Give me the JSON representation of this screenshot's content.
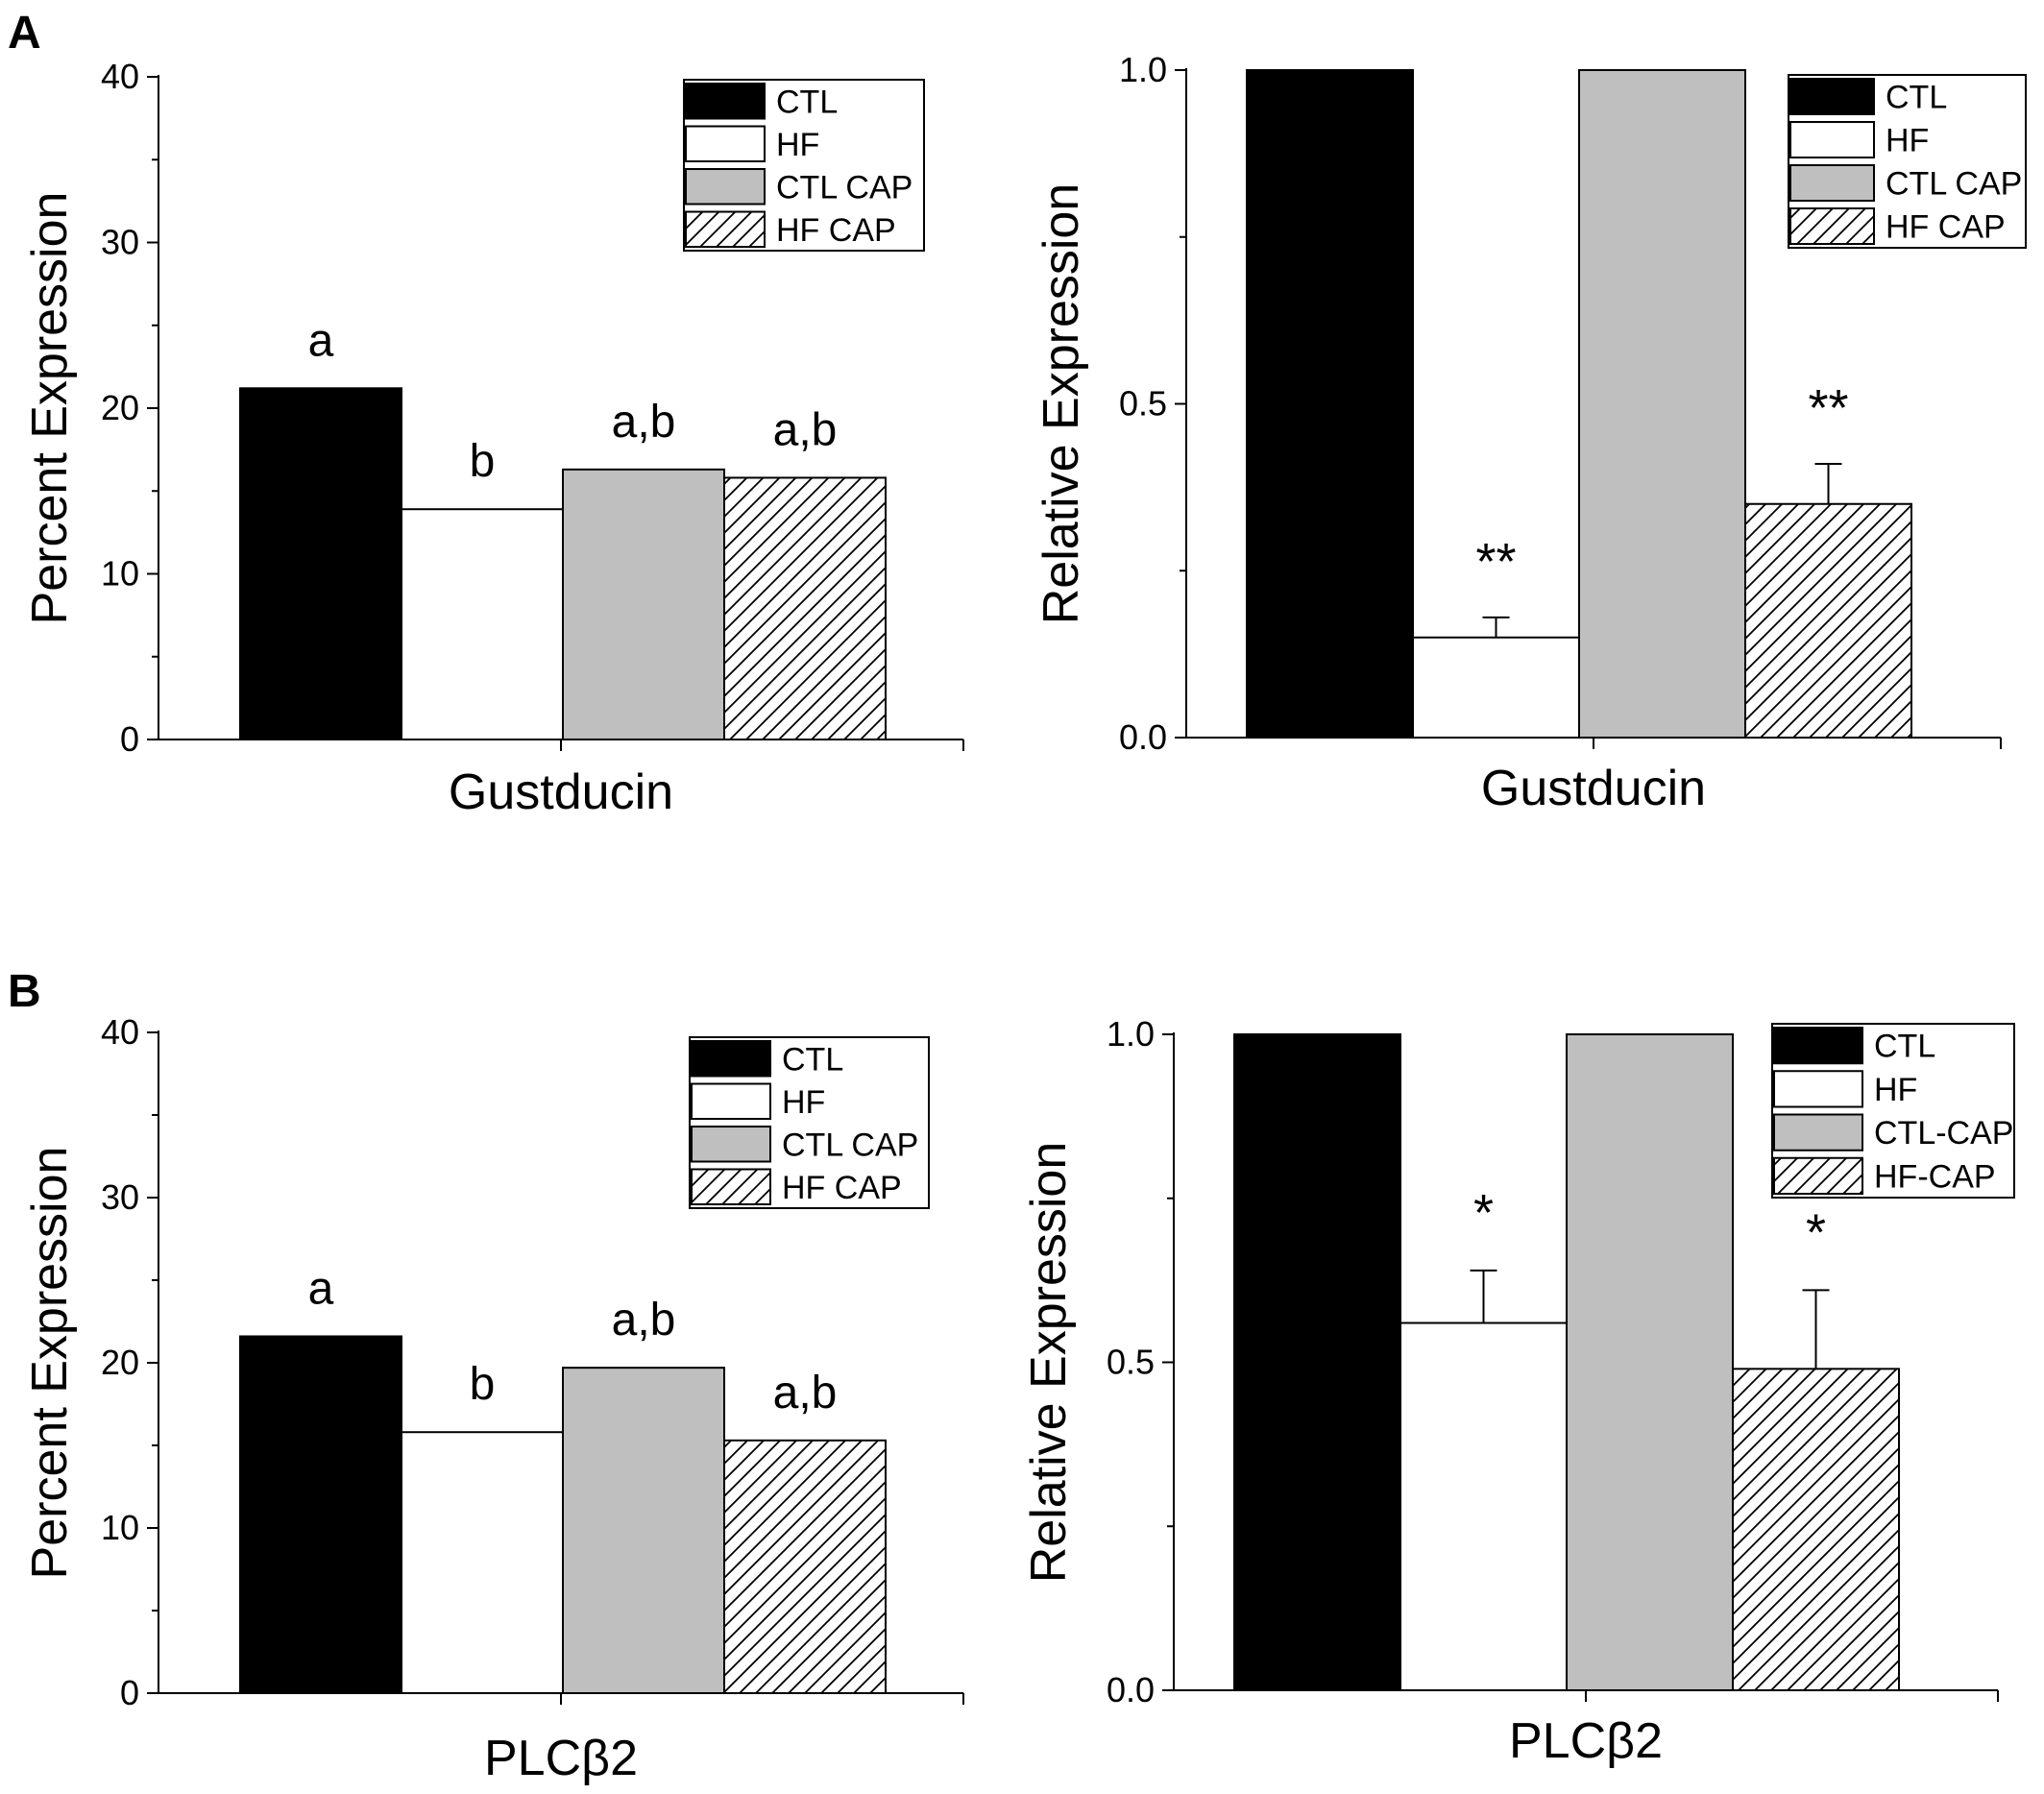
{
  "colors": {
    "CTL": "#000000",
    "HF": "#ffffff",
    "CTL CAP": "#bfbfbf",
    "HF CAP": "hatch"
  },
  "chart_data": [
    {
      "panel": "A",
      "type": "bar",
      "categories": [
        "CTL",
        "HF",
        "CTL CAP",
        "HF CAP"
      ],
      "values": [
        21.2,
        13.9,
        16.3,
        15.8
      ],
      "annotations": [
        "a",
        "b",
        "a,b",
        "a,b"
      ],
      "xlabel": "Gustducin",
      "ylabel": "Percent Expression",
      "ylim": [
        0,
        40
      ],
      "yticks": [
        0,
        10,
        20,
        30,
        40
      ],
      "yticks_text": [
        "0",
        "10",
        "20",
        "30",
        "40"
      ],
      "legend": [
        "CTL",
        "HF",
        "CTL CAP",
        "HF CAP"
      ],
      "legend_position": "top-right",
      "grid": false
    },
    {
      "panel": "",
      "type": "bar",
      "categories": [
        "CTL",
        "HF",
        "CTL CAP",
        "HF CAP"
      ],
      "values": [
        1.0,
        0.15,
        1.0,
        0.35
      ],
      "errors": [
        0,
        0.03,
        0,
        0.06
      ],
      "annotations": [
        "",
        "**",
        "",
        "**"
      ],
      "xlabel": "Gustducin",
      "ylabel": "Relative Expression",
      "ylim": [
        0,
        1
      ],
      "yticks": [
        0,
        0.5,
        1
      ],
      "yticks_text": [
        "0.0",
        "0.5",
        "1.0"
      ],
      "legend": [
        "CTL",
        "HF",
        "CTL CAP",
        "HF CAP"
      ],
      "legend_position": "top-right",
      "grid": false
    },
    {
      "panel": "B",
      "type": "bar",
      "categories": [
        "CTL",
        "HF",
        "CTL CAP",
        "HF CAP"
      ],
      "values": [
        21.6,
        15.8,
        19.7,
        15.3
      ],
      "annotations": [
        "a",
        "b",
        "a,b",
        "a,b"
      ],
      "xlabel": "PLCβ2",
      "ylabel": "Percent Expression",
      "ylim": [
        0,
        40
      ],
      "yticks": [
        0,
        10,
        20,
        30,
        40
      ],
      "yticks_text": [
        "0",
        "10",
        "20",
        "30",
        "40"
      ],
      "legend": [
        "CTL",
        "HF",
        "CTL CAP",
        "HF CAP"
      ],
      "legend_position": "top-right",
      "grid": false
    },
    {
      "panel": "",
      "type": "bar",
      "categories": [
        "CTL",
        "HF",
        "CTL-CAP",
        "HF-CAP"
      ],
      "values": [
        1.0,
        0.56,
        1.0,
        0.49
      ],
      "errors": [
        0,
        0.08,
        0,
        0.12
      ],
      "annotations": [
        "",
        "*",
        "",
        "*"
      ],
      "xlabel": "PLCβ2",
      "ylabel": "Relative Expression",
      "ylim": [
        0,
        1
      ],
      "yticks": [
        0,
        0.5,
        1
      ],
      "yticks_text": [
        "0.0",
        "0.5",
        "1.0"
      ],
      "legend": [
        "CTL",
        "HF",
        "CTL-CAP",
        "HF-CAP"
      ],
      "legend_position": "top-right",
      "grid": false
    }
  ]
}
